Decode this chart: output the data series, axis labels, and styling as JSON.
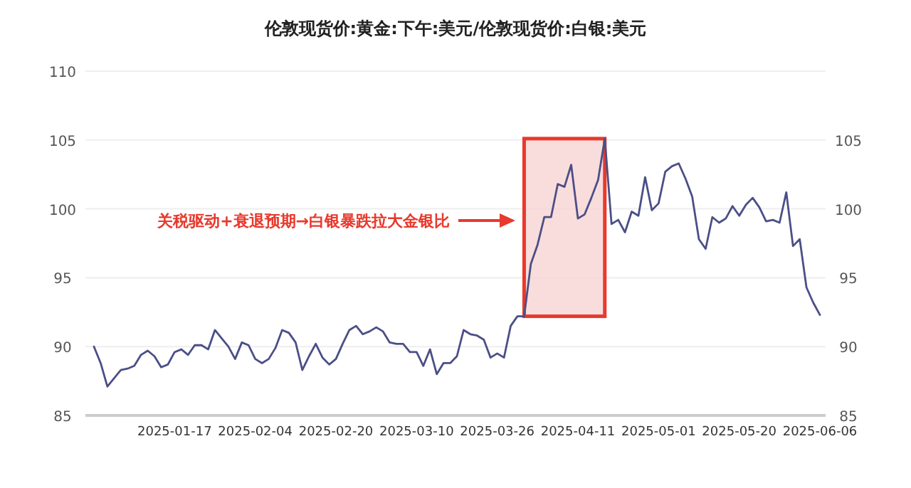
{
  "chart_data": {
    "type": "line",
    "title": "伦敦现货价:黄金:下午:美元/伦敦现货价:白银:美元",
    "categories": [
      null,
      null,
      null,
      null,
      null,
      null,
      null,
      null,
      null,
      null,
      null,
      null,
      "2025-01-17",
      null,
      null,
      null,
      null,
      null,
      null,
      null,
      null,
      null,
      null,
      null,
      "2025-02-04",
      null,
      null,
      null,
      null,
      null,
      null,
      null,
      null,
      null,
      null,
      null,
      "2025-02-20",
      null,
      null,
      null,
      null,
      null,
      null,
      null,
      null,
      null,
      null,
      null,
      "2025-03-10",
      null,
      null,
      null,
      null,
      null,
      null,
      null,
      null,
      null,
      null,
      null,
      "2025-03-26",
      null,
      null,
      null,
      null,
      null,
      null,
      null,
      null,
      null,
      null,
      null,
      "2025-04-11",
      null,
      null,
      null,
      null,
      null,
      null,
      null,
      null,
      null,
      null,
      null,
      "2025-05-01",
      null,
      null,
      null,
      null,
      null,
      null,
      null,
      null,
      null,
      null,
      null,
      "2025-05-20",
      null,
      null,
      null,
      null,
      null,
      null,
      null,
      null,
      null,
      null,
      null,
      "2025-06-06"
    ],
    "series": [
      {
        "color": "#4b4f86",
        "values": [
          90.0,
          88.8,
          87.1,
          87.7,
          88.3,
          88.4,
          88.6,
          89.4,
          89.7,
          89.3,
          88.5,
          88.7,
          89.6,
          89.8,
          89.4,
          90.1,
          90.1,
          89.8,
          91.2,
          90.6,
          90.0,
          89.1,
          90.3,
          90.1,
          89.1,
          88.8,
          89.1,
          89.9,
          91.2,
          91.0,
          90.3,
          88.3,
          89.3,
          90.2,
          89.2,
          88.7,
          89.1,
          90.2,
          91.2,
          91.5,
          90.9,
          91.1,
          91.4,
          91.1,
          90.3,
          90.2,
          90.2,
          89.6,
          89.6,
          88.6,
          89.8,
          88.0,
          88.8,
          88.8,
          89.3,
          91.2,
          90.9,
          90.8,
          90.5,
          89.2,
          89.5,
          89.2,
          91.5,
          92.2,
          92.2,
          96.0,
          97.4,
          99.4,
          99.4,
          101.8,
          101.6,
          103.2,
          99.3,
          99.6,
          100.8,
          102.1,
          105.1,
          98.9,
          99.2,
          98.3,
          99.8,
          99.5,
          102.3,
          99.9,
          100.4,
          102.7,
          103.1,
          103.3,
          102.2,
          100.9,
          97.8,
          97.1,
          99.4,
          99.0,
          99.3,
          100.2,
          99.5,
          100.3,
          100.8,
          100.1,
          99.1,
          99.2,
          99.0,
          101.2,
          97.3,
          97.8,
          94.3,
          93.2,
          92.3
        ]
      }
    ],
    "ylim": [
      85,
      110
    ],
    "yticks": [
      85,
      90,
      95,
      100,
      105,
      110
    ],
    "y2lim": [
      85,
      110
    ],
    "y2ticks": [
      85,
      90,
      95,
      100,
      105
    ],
    "grid": "y",
    "marker": "none",
    "line_style": "solid",
    "annotations": [
      "关税驱动+衰退预期→白银暴跌拉大金银比"
    ]
  }
}
